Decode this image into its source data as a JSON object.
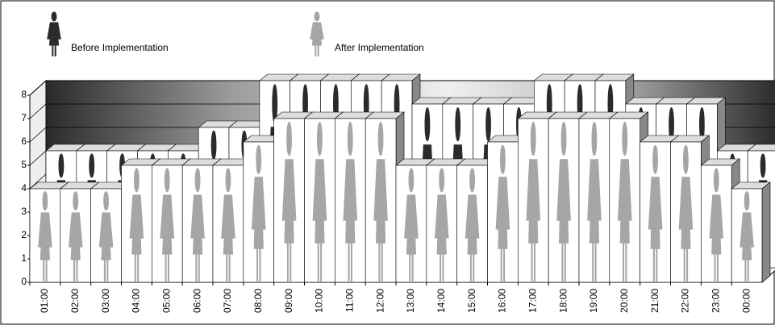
{
  "chart_data": {
    "type": "bar3d-pictograph",
    "categories": [
      "01:00",
      "02:00",
      "03:00",
      "04:00",
      "05:00",
      "06:00",
      "07:00",
      "08:00",
      "09:00",
      "10:00",
      "11:00",
      "12:00",
      "13:00",
      "14:00",
      "15:00",
      "16:00",
      "17:00",
      "18:00",
      "19:00",
      "20:00",
      "21:00",
      "22:00",
      "23:00",
      "00:00"
    ],
    "series": [
      {
        "name": "Before Implementation",
        "color": "#2b2b2b",
        "values": [
          5,
          5,
          5,
          5,
          5,
          6,
          6,
          8,
          8,
          8,
          8,
          8,
          7,
          7,
          7,
          7,
          8,
          8,
          8,
          7,
          7,
          7,
          5,
          5
        ]
      },
      {
        "name": "After Implementation",
        "color": "#a6a6a6",
        "values": [
          4,
          4,
          4,
          5,
          5,
          5,
          5,
          6,
          7,
          7,
          7,
          7,
          5,
          5,
          5,
          6,
          7,
          7,
          7,
          7,
          6,
          6,
          5,
          4
        ]
      }
    ],
    "ylim": [
      0,
      8
    ],
    "yticks": [
      0,
      1,
      2,
      3,
      4,
      5,
      6,
      7,
      8
    ],
    "grid": true,
    "legend": "top"
  }
}
